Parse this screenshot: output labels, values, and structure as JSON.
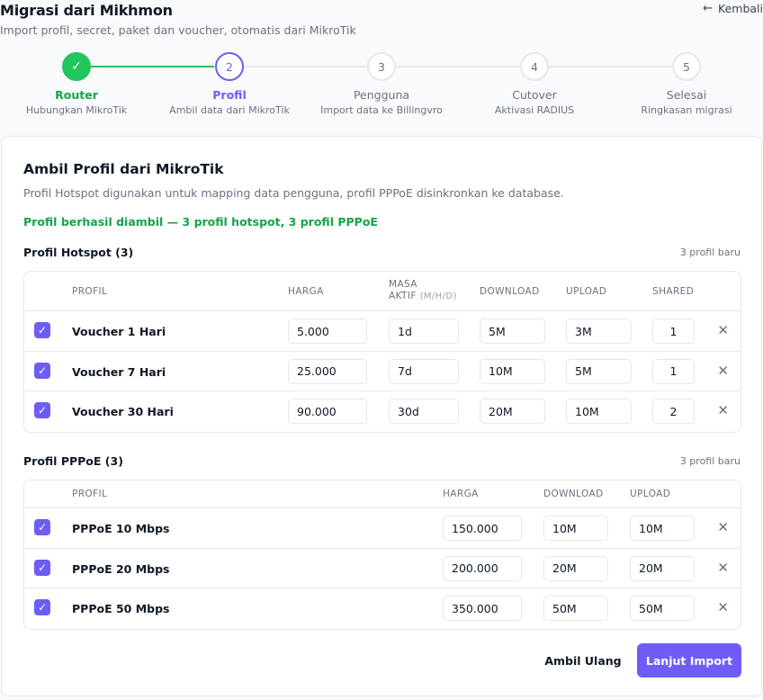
{
  "header": {
    "title": "Migrasi dari Mikhmon",
    "subtitle": "Import profil, secret, paket dan voucher, otomatis dari MikroTik",
    "back_label": "Kembali"
  },
  "steps": [
    {
      "number": "1",
      "label": "Router",
      "desc": "Hubungkan MikroTik",
      "state": "done",
      "icon": "check-icon"
    },
    {
      "number": "2",
      "label": "Profil",
      "desc": "Ambil data dari MikroTik",
      "state": "active"
    },
    {
      "number": "3",
      "label": "Pengguna",
      "desc": "Import data ke Billingvro",
      "state": "pending"
    },
    {
      "number": "4",
      "label": "Cutover",
      "desc": "Aktivasi RADIUS",
      "state": "pending"
    },
    {
      "number": "5",
      "label": "Selesai",
      "desc": "Ringkasan migrasi",
      "state": "pending"
    }
  ],
  "card": {
    "title": "Ambil Profil dari MikroTik",
    "description": "Profil Hotspot digunakan untuk mapping data pengguna, profil PPPoE disinkronkan ke database.",
    "success": "Profil berhasil diambil — 3 profil hotspot, 3 profil PPPoE"
  },
  "hotspot": {
    "title": "Profil Hotspot (3)",
    "count": "3 profil baru",
    "headers": {
      "profile": "PROFIL",
      "price": "HARGA",
      "period": "MASA",
      "period2": "AKTIF",
      "period_unit": "(M/H/D)",
      "download": "DOWNLOAD",
      "upload": "UPLOAD",
      "shared": "SHARED"
    },
    "rows": [
      {
        "name": "Voucher 1 Hari",
        "price": "5.000",
        "period": "1d",
        "download": "5M",
        "upload": "3M",
        "shared": "1",
        "checked": true
      },
      {
        "name": "Voucher 7 Hari",
        "price": "25.000",
        "period": "7d",
        "download": "10M",
        "upload": "5M",
        "shared": "1",
        "checked": true
      },
      {
        "name": "Voucher 30 Hari",
        "price": "90.000",
        "period": "30d",
        "download": "20M",
        "upload": "10M",
        "shared": "2",
        "checked": true
      }
    ]
  },
  "pppoe": {
    "title": "Profil PPPoE (3)",
    "count": "3 profil baru",
    "headers": {
      "profile": "PROFIL",
      "price": "HARGA",
      "download": "DOWNLOAD",
      "upload": "UPLOAD"
    },
    "rows": [
      {
        "name": "PPPoE 10 Mbps",
        "price": "150.000",
        "download": "10M",
        "upload": "10M",
        "checked": true
      },
      {
        "name": "PPPoE 20 Mbps",
        "price": "200.000",
        "download": "20M",
        "upload": "20M",
        "checked": true
      },
      {
        "name": "PPPoE 50 Mbps",
        "price": "350.000",
        "download": "50M",
        "upload": "50M",
        "checked": true
      }
    ]
  },
  "actions": {
    "retry_label": "Ambil Ulang",
    "next_label": "Lanjut Import"
  },
  "colors": {
    "accent": "#6d5df6",
    "success": "#22c55e",
    "success_text": "#16a34a",
    "muted": "#6b7280",
    "border": "#e5e7eb"
  },
  "icons": {
    "back": "arrow-left-icon",
    "check": "check-icon",
    "remove": "close-icon"
  }
}
